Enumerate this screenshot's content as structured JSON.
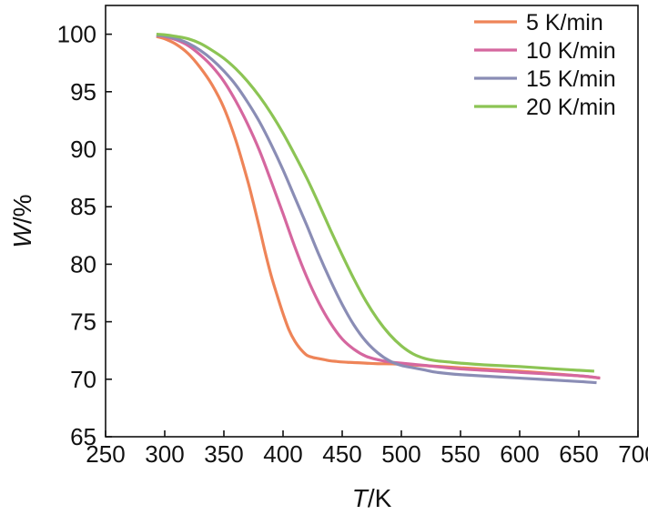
{
  "chart_data": {
    "type": "line",
    "title": "",
    "xlabel_italic": "T",
    "xlabel_unit": "/K",
    "ylabel_italic": "W",
    "ylabel_unit": "/%",
    "xlim": [
      250,
      700
    ],
    "ylim": [
      65,
      102.5
    ],
    "xticks": [
      250,
      300,
      350,
      400,
      450,
      500,
      550,
      600,
      650,
      700
    ],
    "yticks": [
      65,
      70,
      75,
      80,
      85,
      90,
      95,
      100
    ],
    "legend_position": "top-right",
    "series": [
      {
        "name": "5 K/min",
        "color": "#EE8458",
        "x": [
          293,
          300,
          310,
          320,
          330,
          340,
          350,
          360,
          370,
          375,
          380,
          385,
          390,
          395,
          400,
          405,
          410,
          415,
          420,
          425,
          430,
          435,
          440,
          445,
          450,
          460,
          470,
          480,
          500,
          550,
          600,
          650,
          668
        ],
        "y": [
          99.8,
          99.6,
          99.1,
          98.3,
          97.1,
          95.6,
          93.6,
          90.8,
          87.3,
          85.3,
          83.2,
          81.0,
          79.0,
          77.3,
          75.7,
          74.3,
          73.3,
          72.6,
          72.1,
          71.9,
          71.8,
          71.7,
          71.6,
          71.55,
          71.5,
          71.45,
          71.4,
          71.35,
          71.3,
          71.0,
          70.7,
          70.3,
          70.1
        ]
      },
      {
        "name": "10 K/min",
        "color": "#D5679F",
        "x": [
          293,
          300,
          310,
          320,
          330,
          340,
          350,
          360,
          370,
          380,
          390,
          400,
          410,
          420,
          430,
          440,
          450,
          460,
          470,
          480,
          490,
          500,
          510,
          520,
          550,
          600,
          650,
          668
        ],
        "y": [
          99.9,
          99.8,
          99.5,
          99.0,
          98.2,
          97.2,
          95.9,
          94.2,
          92.2,
          89.9,
          87.2,
          84.4,
          81.5,
          78.9,
          76.7,
          74.9,
          73.5,
          72.6,
          72.0,
          71.7,
          71.5,
          71.4,
          71.3,
          71.2,
          70.9,
          70.6,
          70.3,
          70.1
        ]
      },
      {
        "name": "15 K/min",
        "color": "#8A8DB5",
        "x": [
          293,
          300,
          310,
          320,
          330,
          340,
          350,
          360,
          370,
          380,
          390,
          400,
          410,
          420,
          430,
          440,
          450,
          460,
          470,
          480,
          490,
          500,
          510,
          520,
          530,
          550,
          600,
          650,
          665
        ],
        "y": [
          99.9,
          99.85,
          99.6,
          99.2,
          98.6,
          97.8,
          96.8,
          95.6,
          94.1,
          92.4,
          90.4,
          88.2,
          85.8,
          83.4,
          80.9,
          78.6,
          76.5,
          74.7,
          73.3,
          72.3,
          71.6,
          71.2,
          71.0,
          70.8,
          70.6,
          70.4,
          70.1,
          69.8,
          69.7
        ]
      },
      {
        "name": "20 K/min",
        "color": "#8CC454",
        "x": [
          293,
          300,
          310,
          320,
          330,
          340,
          350,
          360,
          370,
          380,
          390,
          400,
          410,
          420,
          430,
          440,
          450,
          460,
          470,
          480,
          490,
          500,
          510,
          520,
          530,
          540,
          550,
          570,
          600,
          630,
          663
        ],
        "y": [
          100.0,
          99.95,
          99.8,
          99.6,
          99.2,
          98.6,
          97.9,
          97.0,
          95.9,
          94.6,
          93.1,
          91.4,
          89.5,
          87.5,
          85.3,
          83.0,
          80.8,
          78.7,
          76.8,
          75.2,
          73.9,
          72.9,
          72.2,
          71.8,
          71.6,
          71.5,
          71.4,
          71.25,
          71.1,
          70.9,
          70.7
        ]
      }
    ]
  }
}
